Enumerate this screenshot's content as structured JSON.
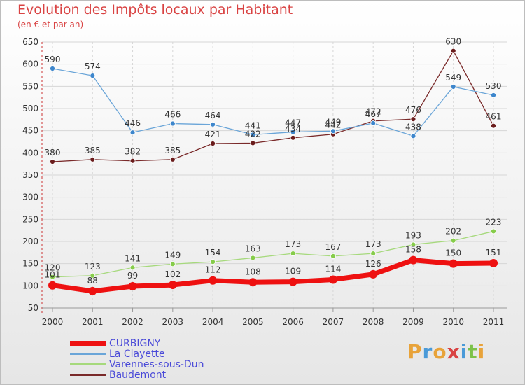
{
  "header": {
    "title": "Evolution des Impôts locaux par Habitant",
    "subtitle": "(en € et par an)"
  },
  "logo": {
    "text": "Proxiti",
    "colors": [
      "#e8a33a",
      "#4a9ad8",
      "#e8a33a",
      "#d94343",
      "#4a9ad8",
      "#7cc24a",
      "#e8a33a"
    ]
  },
  "chart_data": {
    "type": "line",
    "title": "Evolution des Impôts locaux par Habitant",
    "subtitle": "(en € et par an)",
    "x": [
      "2000",
      "2001",
      "2002",
      "2003",
      "2004",
      "2005",
      "2006",
      "2007",
      "2008",
      "2009",
      "2010",
      "2011"
    ],
    "ylim": [
      50,
      650
    ],
    "yticks": [
      50,
      100,
      150,
      200,
      250,
      300,
      350,
      400,
      450,
      500,
      550,
      600,
      650
    ],
    "grid": true,
    "legend_position": "bottom-left",
    "series": [
      {
        "name": "CURBIGNY",
        "color": "#ee1111",
        "point_color": "#ee1111",
        "width": 7,
        "radius": 6,
        "values": [
          101,
          88,
          99,
          102,
          112,
          108,
          109,
          114,
          126,
          158,
          150,
          151
        ]
      },
      {
        "name": "La Clayette",
        "color": "#6aa5d8",
        "point_color": "#3d86cc",
        "width": 1.3,
        "radius": 3.5,
        "values": [
          590,
          574,
          446,
          466,
          464,
          441,
          447,
          449,
          467,
          438,
          549,
          530
        ]
      },
      {
        "name": "Varennes-sous-Dun",
        "color": "#a6d97c",
        "point_color": "#86cc4a",
        "width": 1.3,
        "radius": 3.5,
        "values": [
          120,
          123,
          141,
          149,
          154,
          163,
          173,
          167,
          173,
          193,
          202,
          223
        ]
      },
      {
        "name": "Baudemont",
        "color": "#7a2a2a",
        "point_color": "#6a1c1c",
        "width": 1.3,
        "radius": 3.5,
        "values": [
          380,
          385,
          382,
          385,
          421,
          422,
          434,
          442,
          472,
          476,
          630,
          461
        ]
      }
    ],
    "data_labels": [
      [
        "101",
        "88",
        "99",
        "102",
        "112",
        "108",
        "109",
        "114",
        "126",
        "158",
        "150",
        "151"
      ],
      [
        "590",
        "574",
        "446",
        "466",
        "464",
        "441",
        "447",
        "449",
        "467",
        "438",
        "549",
        "530"
      ],
      [
        "120",
        "123",
        "141",
        "149",
        "154",
        "163",
        "173",
        "167",
        "173",
        "193",
        "202",
        "223"
      ],
      [
        "380",
        "385",
        "382",
        "385",
        "421",
        "422",
        "434",
        "442",
        "472",
        "476",
        "630",
        "461"
      ]
    ]
  }
}
